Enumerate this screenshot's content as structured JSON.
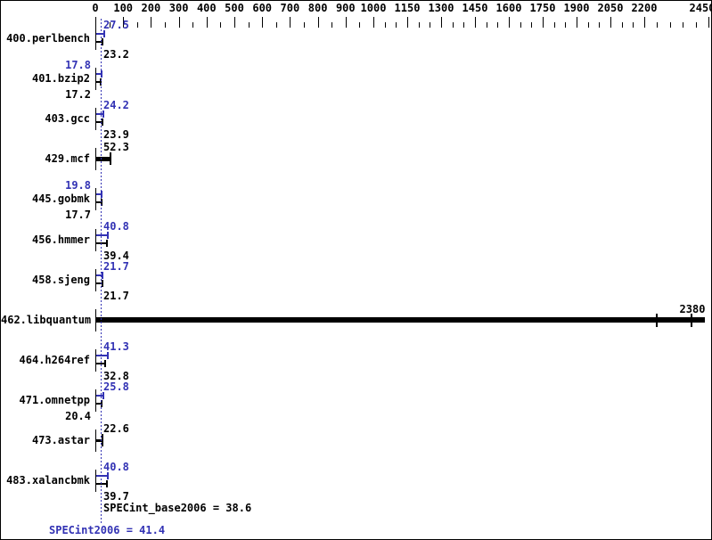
{
  "chart_data": {
    "type": "bar",
    "orientation": "horizontal",
    "axis": {
      "position": "top",
      "major_ticks": [
        0,
        100,
        200,
        300,
        400,
        500,
        600,
        700,
        800,
        900,
        1000,
        1150,
        1300,
        1450,
        1600,
        1750,
        1900,
        2050,
        2200,
        2450
      ],
      "minor_tick_step": 50,
      "min": 0,
      "max": 2450
    },
    "benchmarks": [
      {
        "name": "400.perlbench",
        "kind": "dual",
        "peak": 27.5,
        "base": 23.2,
        "peak_label": "27.5",
        "base_label": "23.2",
        "peak_side": "right",
        "base_side": "right"
      },
      {
        "name": "401.bzip2",
        "kind": "dual",
        "peak": 17.8,
        "base": 17.2,
        "peak_label": "17.8",
        "base_label": "17.2",
        "peak_side": "left",
        "base_side": "left"
      },
      {
        "name": "403.gcc",
        "kind": "dual",
        "peak": 24.2,
        "base": 23.9,
        "peak_label": "24.2",
        "base_label": "23.9",
        "peak_side": "right",
        "base_side": "right"
      },
      {
        "name": "429.mcf",
        "kind": "single",
        "value": 52.3,
        "label": "52.3",
        "side": "right",
        "thickness": 5
      },
      {
        "name": "445.gobmk",
        "kind": "dual",
        "peak": 19.8,
        "base": 17.7,
        "peak_label": "19.8",
        "base_label": "17.7",
        "peak_side": "left",
        "base_side": "left"
      },
      {
        "name": "456.hmmer",
        "kind": "dual",
        "peak": 40.8,
        "base": 39.4,
        "peak_label": "40.8",
        "base_label": "39.4",
        "peak_side": "right",
        "base_side": "right"
      },
      {
        "name": "458.sjeng",
        "kind": "dual",
        "peak": 21.7,
        "base": 21.7,
        "peak_label": "21.7",
        "base_label": "21.7",
        "peak_side": "right",
        "base_side": "right"
      },
      {
        "name": "462.libquantum",
        "kind": "overflow",
        "label": "2380",
        "label_value": 2380,
        "cap_values": [
          2245,
          2380
        ],
        "bar_end_value": 2430,
        "thickness": 6
      },
      {
        "name": "464.h264ref",
        "kind": "dual",
        "peak": 41.3,
        "base": 32.8,
        "peak_label": "41.3",
        "base_label": "32.8",
        "peak_side": "right",
        "base_side": "right"
      },
      {
        "name": "471.omnetpp",
        "kind": "dual",
        "peak": 25.8,
        "base": 20.4,
        "peak_label": "25.8",
        "base_label": "20.4",
        "peak_side": "right",
        "base_side": "left"
      },
      {
        "name": "473.astar",
        "kind": "single",
        "value": 22.6,
        "label": "22.6",
        "side": "right",
        "thickness": 3
      },
      {
        "name": "483.xalancbmk",
        "kind": "dual",
        "peak": 40.8,
        "base": 39.7,
        "peak_label": "40.8",
        "base_label": "39.7",
        "peak_side": "right",
        "base_side": "right"
      }
    ],
    "summary": {
      "base_text": "SPECint_base2006 = 38.6",
      "base_value": 38.6,
      "peak_text": "SPECint2006 = 41.4",
      "peak_value": 41.4
    },
    "reference_line": {
      "style": "dotted",
      "color_role": "peak"
    }
  },
  "colors": {
    "peak_blue": "#3232b4",
    "base_black": "#000000",
    "background": "#ffffff"
  }
}
